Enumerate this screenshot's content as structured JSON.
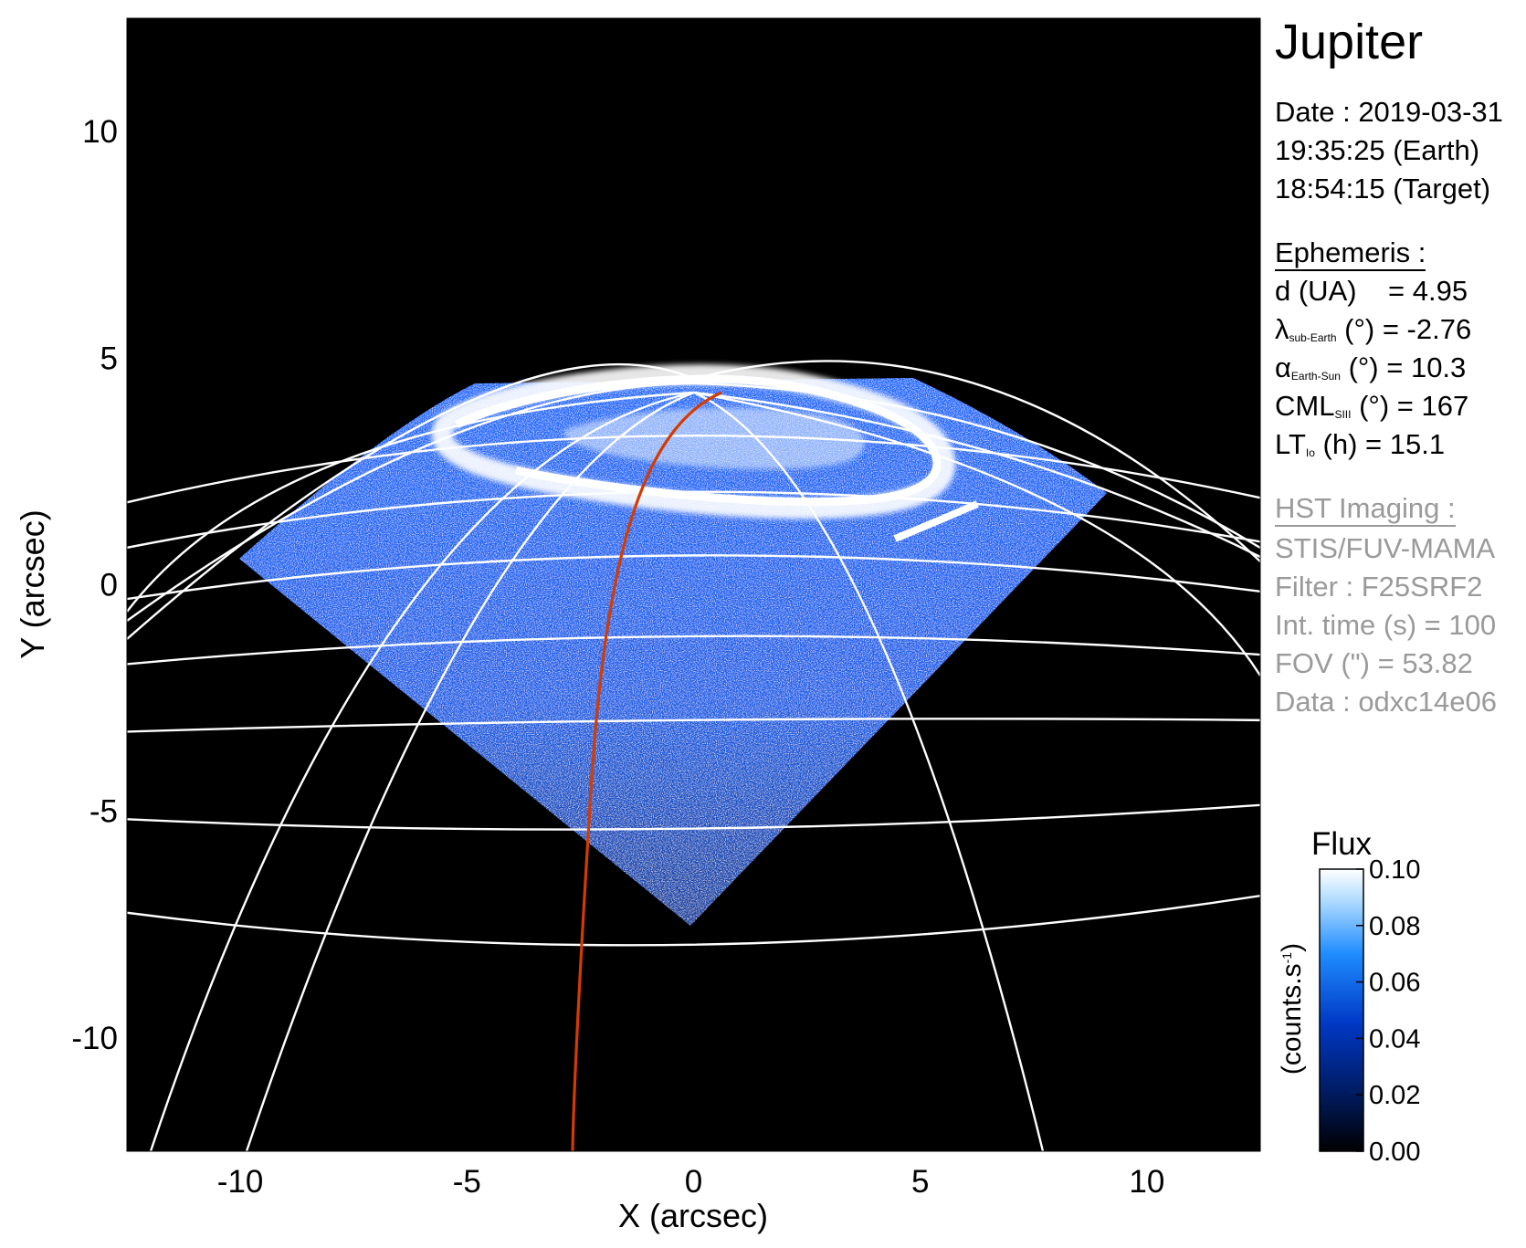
{
  "figure": {
    "target": "Jupiter",
    "x_axis": {
      "label": "X (arcsec)",
      "ticks": [
        "-10",
        "-5",
        "0",
        "5",
        "10"
      ],
      "tick_values": [
        -10,
        -5,
        0,
        5,
        10
      ],
      "range": [
        -12.5,
        12.5
      ]
    },
    "y_axis": {
      "label": "Y (arcsec)",
      "ticks": [
        "10",
        "5",
        "0",
        "-5",
        "-10"
      ],
      "tick_values": [
        10,
        5,
        0,
        -5,
        -10
      ],
      "range": [
        -12.5,
        12.5
      ]
    },
    "colorbar": {
      "title": "Flux",
      "unit_label": "(counts.s",
      "unit_superscript": "-1",
      "unit_close": ")",
      "ticks": [
        "0.10",
        "0.08",
        "0.06",
        "0.04",
        "0.02",
        "0.00"
      ],
      "tick_values": [
        0.1,
        0.08,
        0.06,
        0.04,
        0.02,
        0.0
      ],
      "range": [
        0.0,
        0.1
      ],
      "colors": [
        "#000000",
        "#001a5e",
        "#0038c4",
        "#1f8cff",
        "#a9d8ff",
        "#ffffff"
      ]
    },
    "colors": {
      "background": "#000000",
      "grid": "#ffffff",
      "footprint_curve": "#d43b00",
      "emission": "#1f6cff"
    }
  },
  "info": {
    "date_line": "Date : 2019-03-31",
    "earth_time": "19:35:25 (Earth)",
    "target_time": "18:54:15 (Target)",
    "ephemeris_header": "Ephemeris :",
    "d_label": "d (UA)",
    "d_value": "= 4.95",
    "lambda_symbol": "λ",
    "lambda_sub": "sub-Earth",
    "lambda_value": "(°) = -2.76",
    "alpha_symbol": "α",
    "alpha_sub": "Earth-Sun",
    "alpha_value": "(°) = 10.3",
    "cml_symbol": "CML",
    "cml_sub": "SIII",
    "cml_value": "(°) = 167",
    "lt_symbol": "LT",
    "lt_sub": "Io",
    "lt_value": "(h) = 15.1",
    "hst_header": "HST Imaging :",
    "instrument": "STIS/FUV-MAMA",
    "filter": "Filter : F25SRF2",
    "int_time": "Int. time (s) = 100",
    "fov": "FOV (\") = 53.82",
    "data_id": "Data : odxc14e06"
  }
}
